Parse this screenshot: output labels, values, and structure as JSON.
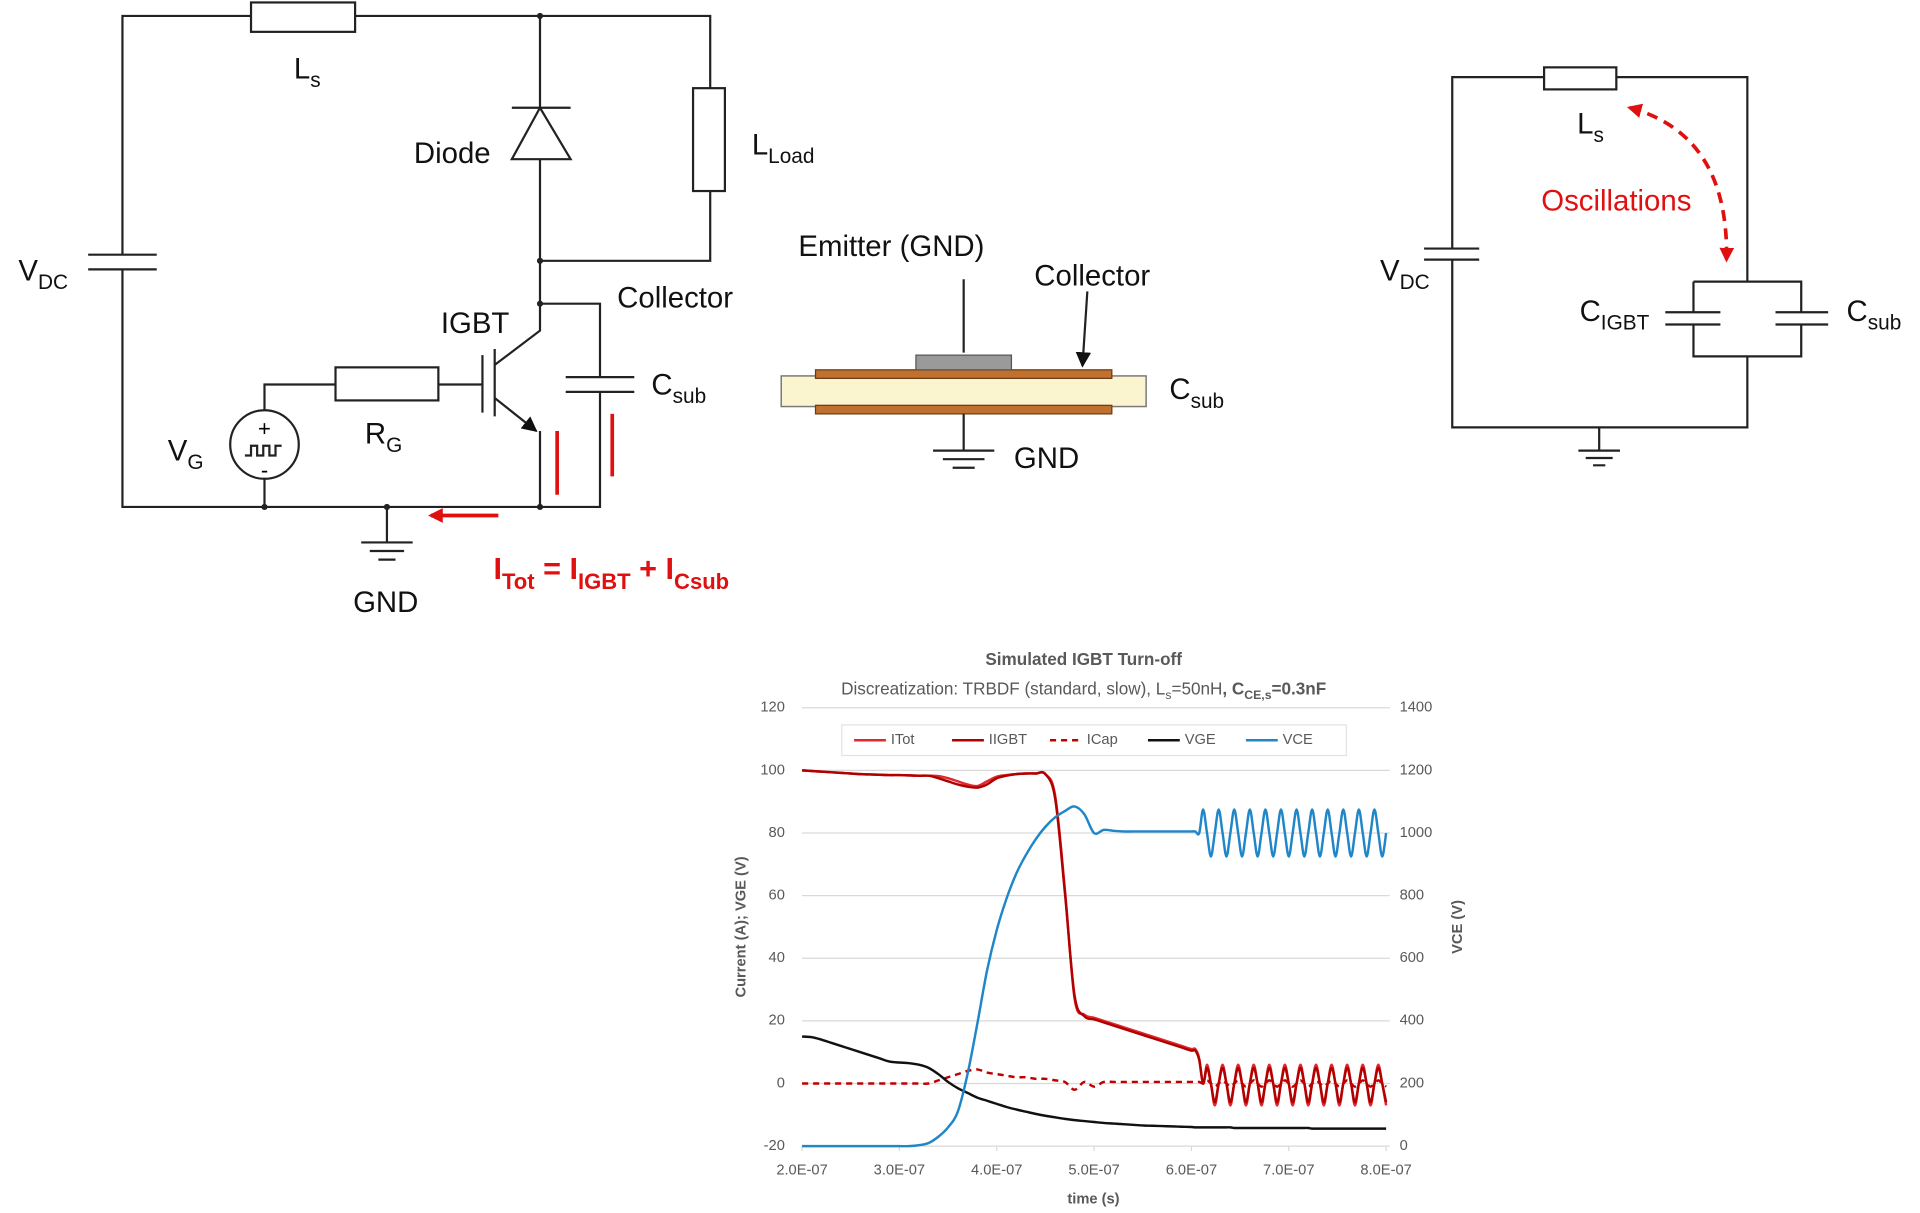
{
  "circuit": {
    "ls": {
      "text": "L",
      "sub": "s"
    },
    "diode": "Diode",
    "lload": {
      "text": "L",
      "sub": "Load"
    },
    "vdc": {
      "text": "V",
      "sub": "DC"
    },
    "collector": "Collector",
    "igbt": "IGBT",
    "csub": {
      "text": "C",
      "sub": "sub"
    },
    "vg": {
      "text": "V",
      "sub": "G"
    },
    "rg": {
      "text": "R",
      "sub": "G"
    },
    "plus": "+",
    "minus": "-",
    "gnd": "GND",
    "equation": [
      {
        "text": "I",
        "sub": "Tot"
      },
      {
        "text": " = I",
        "sub": "IGBT"
      },
      {
        "text": " + I",
        "sub": "Csub"
      }
    ]
  },
  "cross_section": {
    "emitter": "Emitter (GND)",
    "collector": "Collector",
    "csub": {
      "text": "C",
      "sub": "sub"
    },
    "gnd": "GND"
  },
  "equivalent": {
    "ls": {
      "text": "L",
      "sub": "s"
    },
    "oscillations": "Oscillations",
    "vdc": {
      "text": "V",
      "sub": "DC"
    },
    "cigbt": {
      "text": "C",
      "sub": "IGBT"
    },
    "csub": {
      "text": "C",
      "sub": "sub"
    }
  },
  "chart_data": {
    "type": "line",
    "title": "Simulated IGBT Turn-off",
    "subtitle": [
      "Discreatization: TRBDF (standard, slow), L",
      "s",
      "=50nH",
      ", C",
      "CE,s",
      "=0.3nF"
    ],
    "x_label": "time (s)",
    "y_label": "Current (A); VGE (V)",
    "y2_label": "VCE (V)",
    "xlim": [
      2e-07,
      8e-07
    ],
    "xticks": [
      {
        "value": 2e-07,
        "label": "2.0E-07"
      },
      {
        "value": 3e-07,
        "label": "3.0E-07"
      },
      {
        "value": 4e-07,
        "label": "4.0E-07"
      },
      {
        "value": 5e-07,
        "label": "5.0E-07"
      },
      {
        "value": 6e-07,
        "label": "6.0E-07"
      },
      {
        "value": 7e-07,
        "label": "7.0E-07"
      },
      {
        "value": 8e-07,
        "label": "8.0E-07"
      }
    ],
    "ylim": [
      -20,
      120
    ],
    "yticks": [
      -20,
      0,
      20,
      40,
      60,
      80,
      100,
      120
    ],
    "y2lim": [
      0,
      1400
    ],
    "y2ticks": [
      0,
      200,
      400,
      600,
      800,
      1000,
      1200,
      1400
    ],
    "grid": true,
    "legend": "top",
    "x": [
      2e-07,
      2.1e-07,
      2.2e-07,
      2.3e-07,
      2.4e-07,
      2.5e-07,
      2.6e-07,
      2.7e-07,
      2.8e-07,
      2.9e-07,
      3e-07,
      3.1e-07,
      3.2e-07,
      3.3e-07,
      3.4e-07,
      3.5e-07,
      3.6e-07,
      3.7e-07,
      3.8e-07,
      3.9e-07,
      4e-07,
      4.1e-07,
      4.2e-07,
      4.3e-07,
      4.4e-07,
      4.5e-07,
      4.6e-07,
      4.7e-07,
      4.8e-07,
      4.9e-07,
      5e-07,
      5.1e-07,
      5.2e-07,
      5.3e-07,
      5.4e-07,
      5.5e-07,
      5.6e-07,
      5.7e-07,
      5.8e-07,
      5.9e-07,
      6e-07,
      6.04e-07,
      6.08e-07,
      6.12e-07,
      6.16e-07,
      6.2e-07,
      6.24e-07,
      6.28e-07,
      6.32e-07,
      6.36e-07,
      6.4e-07,
      6.44e-07,
      6.48e-07,
      6.52e-07,
      6.56e-07,
      6.6e-07,
      6.64e-07,
      6.68e-07,
      6.72e-07,
      6.76e-07,
      6.8e-07,
      6.84e-07,
      6.88e-07,
      6.92e-07,
      6.96e-07,
      7e-07,
      7.04e-07,
      7.08e-07,
      7.12e-07,
      7.16e-07,
      7.2e-07,
      7.24e-07,
      7.28e-07,
      7.32e-07,
      7.36e-07,
      7.4e-07,
      7.44e-07,
      7.48e-07,
      7.52e-07,
      7.56e-07,
      7.6e-07,
      7.64e-07,
      7.68e-07,
      7.72e-07,
      7.76e-07,
      7.8e-07,
      7.84e-07,
      7.88e-07,
      7.92e-07,
      7.96e-07,
      8e-07
    ],
    "series": [
      {
        "name": "ITot",
        "color": "#e0282e",
        "dashed": false,
        "values": [
          100,
          99.8,
          99.6,
          99.4,
          99.2,
          99,
          98.8,
          98.7,
          98.6,
          98.5,
          98.5,
          98.4,
          98.3,
          98.3,
          98.2,
          97.5,
          96.5,
          95.5,
          95,
          96.5,
          98,
          98.5,
          98.8,
          99,
          99,
          98.8,
          92,
          62,
          27,
          22,
          21,
          20,
          19,
          18,
          17,
          16,
          15,
          14,
          13,
          12,
          11,
          11,
          8,
          0,
          6,
          0,
          -7,
          0,
          6,
          0,
          -7,
          0,
          6,
          0,
          -7,
          0,
          6,
          0,
          -7,
          0,
          6,
          0,
          -7,
          0,
          6,
          0,
          -7,
          0,
          6,
          0,
          -7,
          0,
          6,
          0,
          -7,
          0,
          6,
          0,
          -7,
          0,
          6,
          0,
          -7,
          0,
          6,
          0,
          -7,
          0,
          6,
          0,
          -7
        ]
      },
      {
        "name": "IIGBT",
        "color": "#b00000",
        "dashed": false,
        "values": [
          100,
          99.8,
          99.6,
          99.4,
          99.2,
          99,
          98.8,
          98.7,
          98.6,
          98.5,
          98.5,
          98.4,
          98.3,
          98.3,
          97.5,
          96.5,
          95.5,
          94.8,
          94.5,
          95.5,
          97.5,
          98.3,
          98.8,
          99,
          99,
          98.8,
          91,
          61,
          28,
          21.5,
          20.5,
          19.5,
          18.5,
          17.5,
          16.5,
          15.5,
          14.5,
          13.5,
          12.5,
          11.5,
          10.5,
          10.5,
          7.5,
          0,
          5,
          0,
          -6,
          0,
          5,
          0,
          -6,
          0,
          5,
          0,
          -6,
          0,
          5,
          0,
          -6,
          0,
          5,
          0,
          -6,
          0,
          5,
          0,
          -6,
          0,
          5,
          0,
          -6,
          0,
          5,
          0,
          -6,
          0,
          5,
          0,
          -6,
          0,
          5,
          0,
          -6,
          0,
          5,
          0,
          -6,
          0,
          5,
          0,
          -6
        ]
      },
      {
        "name": "ICap",
        "color": "#c00000",
        "dashed": true,
        "values": [
          0,
          0,
          0,
          0,
          0,
          0,
          0,
          0,
          0,
          0,
          0,
          0,
          0,
          0,
          1,
          2,
          3,
          4,
          4.5,
          3.5,
          3,
          2.5,
          2,
          2,
          1.5,
          1.5,
          1,
          0.5,
          -2,
          0.5,
          -1,
          0.5,
          0.5,
          0.5,
          0.5,
          0.5,
          0.5,
          0.5,
          0.5,
          0.5,
          0.5,
          0.5,
          0.5,
          0,
          1,
          0,
          -1,
          0,
          1,
          0,
          -1,
          0,
          1,
          0,
          -1,
          0,
          1,
          0,
          -1,
          0,
          1,
          0,
          -1,
          0,
          1,
          0,
          -1,
          0,
          1,
          0,
          -1,
          0,
          1,
          0,
          -1,
          0,
          1,
          0,
          -1,
          0,
          1,
          0,
          -1,
          0,
          1,
          0,
          -1,
          0,
          1,
          0,
          -1
        ]
      },
      {
        "name": "VGE",
        "color": "#111111",
        "dashed": false,
        "values": [
          15,
          14.8,
          14,
          13,
          12,
          11,
          10,
          9,
          8,
          7,
          6.7,
          6.5,
          6,
          5,
          3,
          0.5,
          -1.5,
          -3,
          -4.5,
          -5.5,
          -6.5,
          -7.5,
          -8.3,
          -9,
          -9.7,
          -10.3,
          -10.8,
          -11.3,
          -11.7,
          -12,
          -12.3,
          -12.6,
          -12.8,
          -13,
          -13.2,
          -13.4,
          -13.5,
          -13.6,
          -13.7,
          -13.8,
          -13.9,
          -14,
          -14,
          -14,
          -14,
          -14,
          -14,
          -14,
          -14,
          -14,
          -14,
          -14.2,
          -14.2,
          -14.2,
          -14.2,
          -14.2,
          -14.2,
          -14.2,
          -14.2,
          -14.2,
          -14.2,
          -14.2,
          -14.2,
          -14.2,
          -14.2,
          -14.2,
          -14.2,
          -14.2,
          -14.2,
          -14.2,
          -14.2,
          -14.4,
          -14.4,
          -14.4,
          -14.4,
          -14.4,
          -14.4,
          -14.4,
          -14.4,
          -14.4,
          -14.4,
          -14.4,
          -14.4,
          -14.4,
          -14.4,
          -14.4,
          -14.4,
          -14.4,
          -14.4,
          -14.4,
          -14.4
        ]
      },
      {
        "name": "VCE",
        "color": "#1f86c8",
        "dashed": false,
        "axis": "y2",
        "values": [
          0,
          0,
          0,
          0,
          0,
          0,
          0,
          0,
          0,
          0,
          0,
          0,
          3,
          10,
          30,
          60,
          110,
          230,
          390,
          560,
          690,
          790,
          870,
          930,
          980,
          1020,
          1050,
          1070,
          1085,
          1060,
          1000,
          1010,
          1007,
          1005,
          1005,
          1005,
          1005,
          1005,
          1005,
          1005,
          1005,
          1005,
          1000,
          1075,
          1000,
          925,
          1000,
          1075,
          1000,
          925,
          1000,
          1075,
          1000,
          925,
          1000,
          1075,
          1000,
          925,
          1000,
          1075,
          1000,
          925,
          1000,
          1075,
          1000,
          925,
          1000,
          1075,
          1000,
          925,
          1000,
          1075,
          1000,
          925,
          1000,
          1075,
          1000,
          925,
          1000,
          1075,
          1000,
          925,
          1000,
          1075,
          1000,
          925,
          1000,
          1075,
          1000,
          925,
          1000
        ]
      }
    ]
  }
}
